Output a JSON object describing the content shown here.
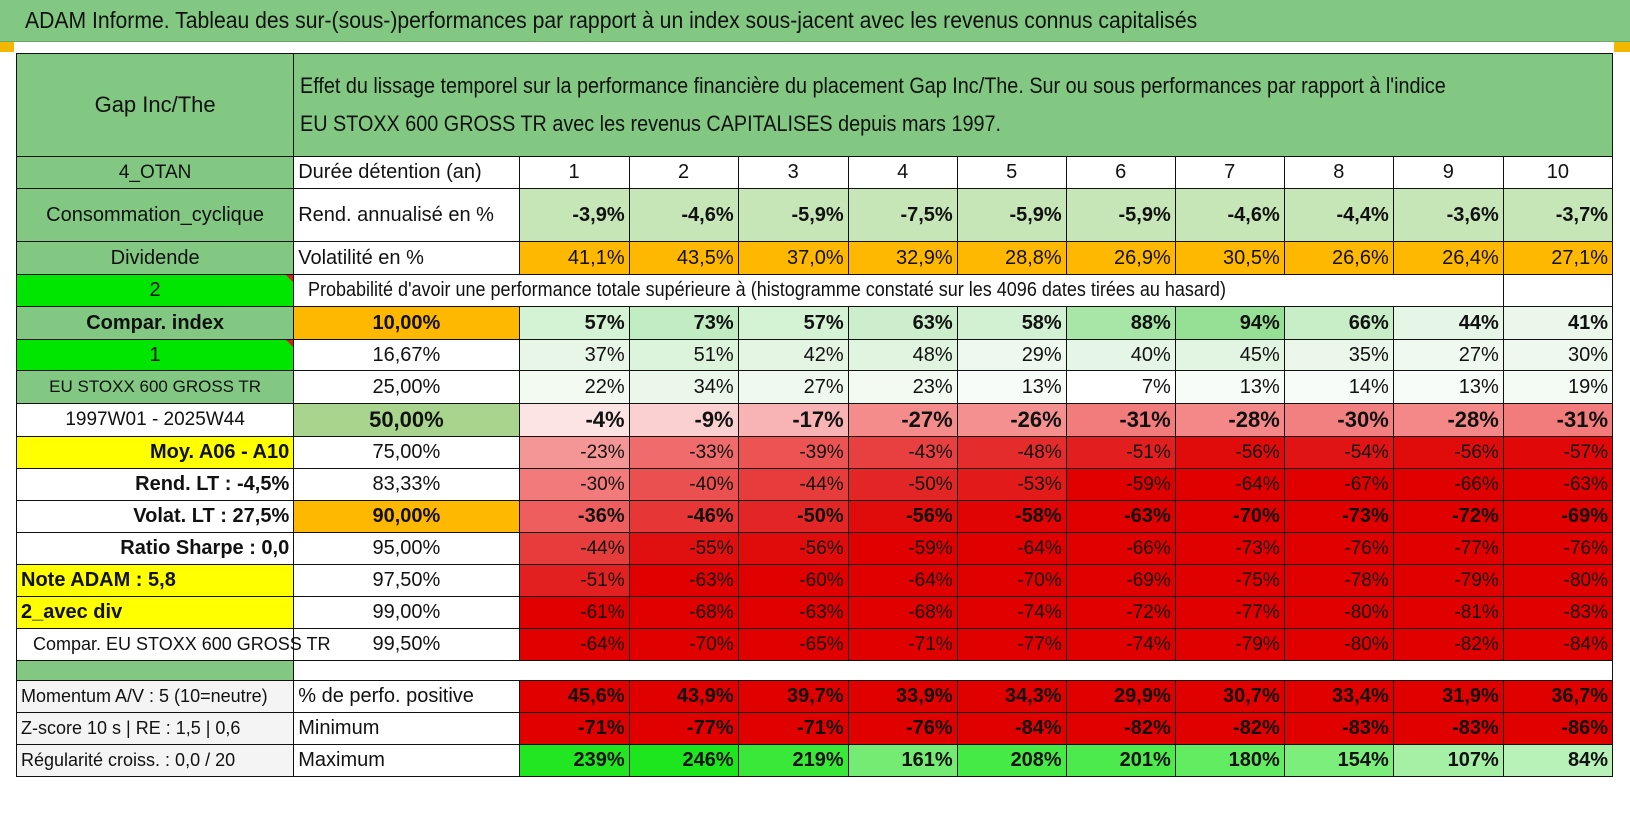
{
  "title": "ADAM Informe. Tableau des sur-(sous-)performances par rapport à un index sous-jacent avec les revenus connus capitalisés",
  "header": {
    "company": "Gap Inc/The",
    "description_line1": "Effet du lissage temporel sur la performance financière du placement Gap Inc/The. Sur ou sous performances par rapport à l'indice",
    "description_line2": "EU STOXX 600 GROSS TR avec les revenus CAPITALISES depuis mars 1997."
  },
  "years_label": "Durée détention (an)",
  "years": [
    "1",
    "2",
    "3",
    "4",
    "5",
    "6",
    "7",
    "8",
    "9",
    "10"
  ],
  "left_labels": {
    "group": "4_OTAN",
    "sector": "Consommation_cyclique",
    "dividend": "Dividende",
    "val2": "2",
    "compar_index": "Compar. index",
    "val1": "1",
    "index_name": "EU STOXX 600 GROSS TR",
    "period": "1997W01 - 2025W44",
    "moy": "Moy. A06 - A10",
    "rend_lt": "Rend. LT :    -4,5%",
    "volat_lt": "Volat. LT :    27,5%",
    "sharpe": "Ratio Sharpe :     0,0",
    "note": "Note ADAM : 5,8",
    "avec_div": "2_avec div",
    "compar_full": "Compar. EU STOXX 600 GROSS TR"
  },
  "rend": {
    "label": "Rend. annualisé en %",
    "values": [
      "-3,9%",
      "-4,6%",
      "-5,9%",
      "-7,5%",
      "-5,9%",
      "-5,9%",
      "-4,6%",
      "-4,4%",
      "-3,6%",
      "-3,7%"
    ]
  },
  "volat": {
    "label": "Volatilité en %",
    "values": [
      "41,1%",
      "43,5%",
      "37,0%",
      "32,9%",
      "28,8%",
      "26,9%",
      "30,5%",
      "26,6%",
      "26,4%",
      "27,1%"
    ]
  },
  "prob_title": "Probabilité d'avoir une performance totale supérieure à (histogramme constaté sur les 4096 dates tirées au hasard)",
  "quantiles": [
    {
      "pct": "10,00%",
      "values": [
        "57%",
        "73%",
        "57%",
        "63%",
        "58%",
        "88%",
        "94%",
        "66%",
        "44%",
        "41%"
      ],
      "colors": [
        "#d4f2d4",
        "#c2ecc2",
        "#d4f2d4",
        "#cceecc",
        "#d2f0d2",
        "#a8e6a8",
        "#96e096",
        "#c8eec8",
        "#e6f6e6",
        "#eaf7ea"
      ]
    },
    {
      "pct": "16,67%",
      "values": [
        "37%",
        "51%",
        "42%",
        "48%",
        "29%",
        "40%",
        "45%",
        "35%",
        "27%",
        "30%"
      ],
      "colors": [
        "#e8f6e8",
        "#dcf3dc",
        "#e4f5e4",
        "#e0f4e0",
        "#eef8ee",
        "#e6f6e6",
        "#e2f4e2",
        "#eaf7ea",
        "#f0f9f0",
        "#eef8ee"
      ]
    },
    {
      "pct": "25,00%",
      "values": [
        "22%",
        "34%",
        "27%",
        "23%",
        "13%",
        "7%",
        "13%",
        "14%",
        "13%",
        "19%"
      ],
      "colors": [
        "#f2faf2",
        "#eaf7ea",
        "#f0f9f0",
        "#f2faf2",
        "#f8fcf8",
        "#ffffff",
        "#f8fcf8",
        "#f8fcf8",
        "#f8fcf8",
        "#f4faf4"
      ]
    },
    {
      "pct": "50,00%",
      "values": [
        "-4%",
        "-9%",
        "-17%",
        "-27%",
        "-26%",
        "-31%",
        "-28%",
        "-30%",
        "-28%",
        "-31%"
      ],
      "colors": [
        "#fde4e4",
        "#fbd0d0",
        "#f8b4b4",
        "#f48c8c",
        "#f49090",
        "#f27c7c",
        "#f48888",
        "#f28080",
        "#f48888",
        "#f27c7c"
      ]
    },
    {
      "pct": "75,00%",
      "values": [
        "-23%",
        "-33%",
        "-39%",
        "-43%",
        "-48%",
        "-51%",
        "-56%",
        "-54%",
        "-56%",
        "-57%"
      ],
      "colors": [
        "#f49696",
        "#f06c6c",
        "#ec5454",
        "#e84040",
        "#e42c2c",
        "#e21e1e",
        "#e00c0c",
        "#e01414",
        "#e00c0c",
        "#e00808"
      ]
    },
    {
      "pct": "83,33%",
      "values": [
        "-30%",
        "-40%",
        "-44%",
        "-50%",
        "-53%",
        "-59%",
        "-64%",
        "-67%",
        "-66%",
        "-63%"
      ],
      "colors": [
        "#f27a7a",
        "#ea5050",
        "#e63c3c",
        "#e22626",
        "#e21a1a",
        "#e00000",
        "#e00000",
        "#e00000",
        "#e00000",
        "#e00000"
      ]
    },
    {
      "pct": "90,00%",
      "values": [
        "-36%",
        "-46%",
        "-50%",
        "-56%",
        "-58%",
        "-63%",
        "-70%",
        "-73%",
        "-72%",
        "-69%"
      ],
      "colors": [
        "#ee5e5e",
        "#e63636",
        "#e22626",
        "#e00c0c",
        "#e00404",
        "#e00000",
        "#e00000",
        "#e00000",
        "#e00000",
        "#e00000"
      ]
    },
    {
      "pct": "95,00%",
      "values": [
        "-44%",
        "-55%",
        "-56%",
        "-59%",
        "-64%",
        "-66%",
        "-73%",
        "-76%",
        "-77%",
        "-76%"
      ],
      "colors": [
        "#e63c3c",
        "#e01010",
        "#e00c0c",
        "#e00000",
        "#e00000",
        "#e00000",
        "#e00000",
        "#e00000",
        "#e00000",
        "#e00000"
      ]
    },
    {
      "pct": "97,50%",
      "values": [
        "-51%",
        "-63%",
        "-60%",
        "-64%",
        "-70%",
        "-69%",
        "-75%",
        "-78%",
        "-79%",
        "-80%"
      ],
      "colors": [
        "#e22020",
        "#e00000",
        "#e00000",
        "#e00000",
        "#e00000",
        "#e00000",
        "#e00000",
        "#e00000",
        "#e00000",
        "#e00000"
      ]
    },
    {
      "pct": "99,00%",
      "values": [
        "-61%",
        "-68%",
        "-63%",
        "-68%",
        "-74%",
        "-72%",
        "-77%",
        "-80%",
        "-81%",
        "-83%"
      ],
      "colors": [
        "#e00000",
        "#e00000",
        "#e00000",
        "#e00000",
        "#e00000",
        "#e00000",
        "#e00000",
        "#e00000",
        "#e00000",
        "#e00000"
      ]
    },
    {
      "pct": "99,50%",
      "values": [
        "-64%",
        "-70%",
        "-65%",
        "-71%",
        "-77%",
        "-74%",
        "-79%",
        "-80%",
        "-82%",
        "-84%"
      ],
      "colors": [
        "#e00000",
        "#e00000",
        "#e00000",
        "#e00000",
        "#e00000",
        "#e00000",
        "#e00000",
        "#e00000",
        "#e00000",
        "#e00000"
      ]
    }
  ],
  "bottom": [
    {
      "left": "Momentum A/V : 5 (10=neutre)",
      "label": "% de perfo. positive",
      "values": [
        "45,6%",
        "43,9%",
        "39,7%",
        "33,9%",
        "34,3%",
        "29,9%",
        "30,7%",
        "33,4%",
        "31,9%",
        "36,7%"
      ],
      "colors": [
        "#e00000",
        "#e00000",
        "#e00000",
        "#e00000",
        "#e00000",
        "#e00000",
        "#e00000",
        "#e00000",
        "#e00000",
        "#e00000"
      ]
    },
    {
      "left": "Z-score 10 s | RE : 1,5 | 0,6",
      "label": "Minimum",
      "values": [
        "-71%",
        "-77%",
        "-71%",
        "-76%",
        "-84%",
        "-82%",
        "-82%",
        "-83%",
        "-83%",
        "-86%"
      ],
      "colors": [
        "#e00000",
        "#e00000",
        "#e00000",
        "#e00000",
        "#e00000",
        "#e00000",
        "#e00000",
        "#e00000",
        "#e00000",
        "#e00000"
      ]
    },
    {
      "left": "Régularité croiss. : 0,0 / 20",
      "label": "Maximum",
      "values": [
        "239%",
        "246%",
        "219%",
        "161%",
        "208%",
        "201%",
        "180%",
        "154%",
        "107%",
        "84%"
      ],
      "colors": [
        "#22e622",
        "#1ee61e",
        "#3ae83a",
        "#74ec74",
        "#46ea46",
        "#4cea4c",
        "#62ec62",
        "#7cee7c",
        "#a6f0a6",
        "#b8f2b8"
      ]
    }
  ],
  "colors": {
    "title_bg": "#82c882",
    "label_green": "#82c882",
    "bright_green": "#00e600",
    "yellow": "#ffff00",
    "orange": "#ffb800",
    "rend_bg": "#c6e6b8",
    "accent_red": "#cc1111"
  }
}
